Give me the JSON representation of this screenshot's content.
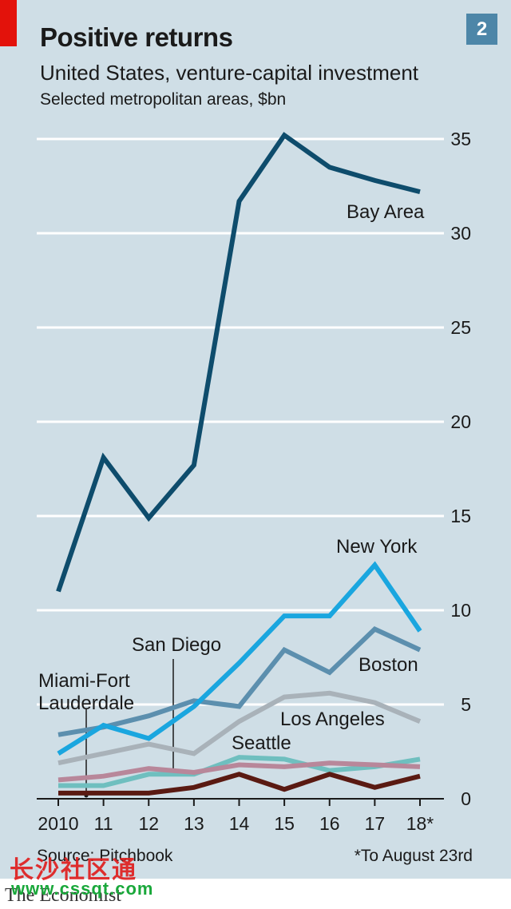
{
  "header": {
    "title": "Positive returns",
    "subtitle": "United States, venture-capital investment",
    "subsubtitle": "Selected metropolitan areas, $bn",
    "chart_number": "2"
  },
  "footer": {
    "source": "Source: Pitchbook",
    "footnote": "*To August 23rd",
    "publisher": "The Economist",
    "watermark": "长沙社区通",
    "watermark_url": "www.cssqt.com"
  },
  "colors": {
    "background": "#cfdee6",
    "accent_red": "#e3120b",
    "gridline": "#ffffff"
  },
  "chart_data": {
    "type": "line",
    "title": "Positive returns",
    "subtitle": "United States, venture-capital investment",
    "ylabel": "Selected metropolitan areas, $bn",
    "categories": [
      "2010",
      "11",
      "12",
      "13",
      "14",
      "15",
      "16",
      "17",
      "18*"
    ],
    "ylim": [
      0,
      35
    ],
    "yticks": [
      0,
      5,
      10,
      15,
      20,
      25,
      30,
      35
    ],
    "grid": true,
    "series": [
      {
        "name": "Bay Area",
        "color": "#0e4c6c",
        "values": [
          11.0,
          18.1,
          14.9,
          17.7,
          31.7,
          35.2,
          33.5,
          32.8,
          32.2
        ]
      },
      {
        "name": "New York",
        "color": "#1aa6df",
        "values": [
          2.4,
          3.9,
          3.2,
          4.9,
          7.2,
          9.7,
          9.7,
          12.4,
          8.9
        ]
      },
      {
        "name": "Boston",
        "color": "#5c8fae",
        "values": [
          3.4,
          3.8,
          4.4,
          5.2,
          4.9,
          7.9,
          6.7,
          9.0,
          7.9
        ]
      },
      {
        "name": "Los Angeles",
        "color": "#a9b2b9",
        "values": [
          1.9,
          2.4,
          2.9,
          2.4,
          4.1,
          5.4,
          5.6,
          5.1,
          4.1
        ]
      },
      {
        "name": "Seattle",
        "color": "#6fbfbf",
        "values": [
          0.7,
          0.7,
          1.3,
          1.3,
          2.2,
          2.1,
          1.5,
          1.7,
          2.1
        ]
      },
      {
        "name": "San Diego",
        "color": "#b8879a",
        "values": [
          1.0,
          1.2,
          1.6,
          1.4,
          1.8,
          1.7,
          1.9,
          1.8,
          1.7
        ]
      },
      {
        "name": "Miami-Fort Lauderdale",
        "color": "#5a1a12",
        "values": [
          0.3,
          0.3,
          0.3,
          0.6,
          1.3,
          0.5,
          1.3,
          0.6,
          1.2
        ]
      }
    ],
    "series_labels": [
      {
        "series": "Bay Area",
        "lines": [
          "Bay Area"
        ]
      },
      {
        "series": "New York",
        "lines": [
          "New York"
        ]
      },
      {
        "series": "Boston",
        "lines": [
          "Boston"
        ]
      },
      {
        "series": "Los Angeles",
        "lines": [
          "Los Angeles"
        ]
      },
      {
        "series": "Seattle",
        "lines": [
          "Seattle"
        ]
      },
      {
        "series": "San Diego",
        "lines": [
          "San Diego"
        ]
      },
      {
        "series": "Miami-Fort Lauderdale",
        "lines": [
          "Miami-Fort",
          "Lauderdale"
        ]
      }
    ]
  }
}
